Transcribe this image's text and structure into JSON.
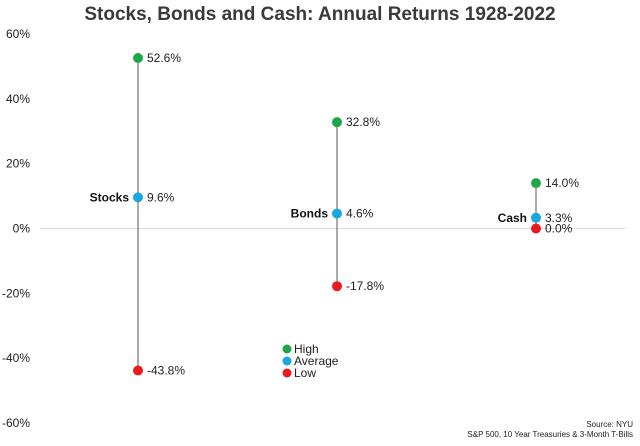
{
  "chart_data": {
    "type": "scatter",
    "title": "Stocks, Bonds and Cash: Annual Returns 1928-2022",
    "y_range": [
      -60,
      60
    ],
    "y_ticks": [
      60,
      40,
      20,
      0,
      -20,
      -40,
      -60
    ],
    "y_tick_labels": [
      "60%",
      "40%",
      "20%",
      "0%",
      "-20%",
      "-40%",
      "-60%"
    ],
    "categories": [
      "Stocks",
      "Bonds",
      "Cash"
    ],
    "series": [
      {
        "name": "High",
        "color": "#1fa64a",
        "values": [
          52.6,
          32.8,
          14.0
        ],
        "labels": [
          "52.6%",
          "32.8%",
          "14.0%"
        ]
      },
      {
        "name": "Average",
        "color": "#1aa7e0",
        "values": [
          9.6,
          4.6,
          3.3
        ],
        "labels": [
          "9.6%",
          "4.6%",
          "3.3%"
        ]
      },
      {
        "name": "Low",
        "color": "#e8191f",
        "values": [
          -43.8,
          -17.8,
          0.0
        ],
        "labels": [
          "-43.8%",
          "-17.8%",
          "0.0%"
        ]
      }
    ],
    "legend": [
      "High",
      "Average",
      "Low"
    ],
    "source": [
      "Source: NYU",
      "S&P 500, 10 Year Treasuries & 3-Month T-Bills"
    ]
  }
}
